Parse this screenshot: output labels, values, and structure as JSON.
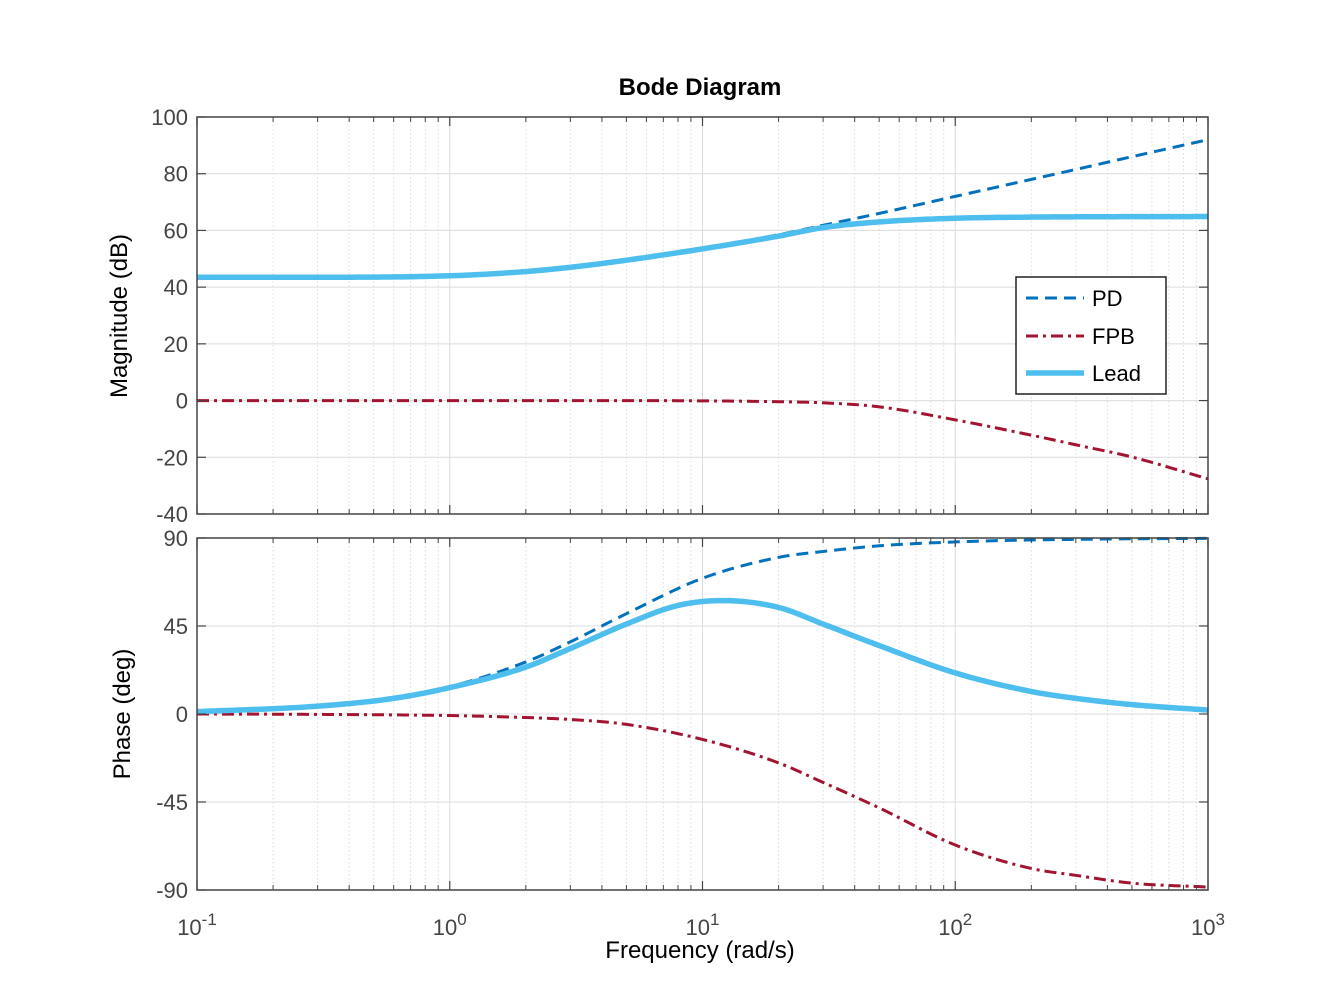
{
  "chart_data": {
    "type": "line",
    "title": "Bode Diagram",
    "xlabel": "Frequency  (rad/s)",
    "xscale": "log",
    "xlim": [
      0.1,
      1000
    ],
    "x_tick_labels": [
      {
        "base": "10",
        "exp": "-1"
      },
      {
        "base": "10",
        "exp": "0"
      },
      {
        "base": "10",
        "exp": "1"
      },
      {
        "base": "10",
        "exp": "2"
      },
      {
        "base": "10",
        "exp": "3"
      }
    ],
    "grid": true,
    "legend": {
      "location": "right",
      "entries": [
        "PD",
        "FPB",
        "Lead"
      ]
    },
    "colors": {
      "PD": "#0072BD",
      "FPB": "#A2142F",
      "Lead": "#4DBEEE",
      "grid": "#dcdcdc",
      "axis": "#444444"
    },
    "line_styles": {
      "PD": "dashed",
      "FPB": "dash-dot",
      "Lead": "solid-thick"
    },
    "subplots": [
      {
        "name": "magnitude",
        "ylabel": "Magnitude (dB)",
        "ylim": [
          -40,
          100
        ],
        "yticks": [
          100,
          80,
          60,
          40,
          20,
          0,
          -20,
          -40
        ],
        "series": [
          {
            "name": "PD",
            "x": [
              0.1,
              0.3,
              1,
              3,
              10,
              20,
              30,
              50,
              100,
              200,
              300,
              500,
              1000
            ],
            "y": [
              43.5,
              43.6,
              44.0,
              47.3,
              53.7,
              58.5,
              61.8,
              66.0,
              72.0,
              78.0,
              81.5,
              86.0,
              92.0
            ]
          },
          {
            "name": "FPB",
            "x": [
              0.1,
              1,
              5,
              10,
              20,
              30,
              50,
              100,
              200,
              300,
              500,
              1000
            ],
            "y": [
              0,
              0,
              0,
              -0.1,
              -0.4,
              -0.8,
              -2.2,
              -6.8,
              -12.2,
              -15.6,
              -19.9,
              -27.6
            ]
          },
          {
            "name": "Lead",
            "x": [
              0.1,
              0.3,
              1,
              2,
              3,
              5,
              10,
              20,
              30,
              50,
              100,
              200,
              300,
              1000
            ],
            "y": [
              43.5,
              43.5,
              44.0,
              45.5,
              47.0,
              49.5,
              53.5,
              58.0,
              61.0,
              63.0,
              64.3,
              64.7,
              64.8,
              64.9
            ]
          }
        ]
      },
      {
        "name": "phase",
        "ylabel": "Phase (deg)",
        "ylim": [
          -90,
          90
        ],
        "yticks": [
          90,
          45,
          0,
          -45,
          -90
        ],
        "series": [
          {
            "name": "PD",
            "x": [
              0.1,
              0.3,
              0.5,
              1,
              2,
              3,
              5,
              10,
              20,
              30,
              50,
              100,
              200,
              300,
              500,
              1000
            ],
            "y": [
              1.5,
              4.3,
              7.1,
              14.0,
              26.6,
              36.9,
              51.3,
              69.4,
              80.1,
              83.1,
              86.0,
              88.0,
              89.0,
              89.3,
              89.6,
              89.8
            ]
          },
          {
            "name": "FPB",
            "x": [
              0.1,
              0.3,
              1,
              2,
              3,
              5,
              10,
              20,
              30,
              50,
              100,
              200,
              300,
              500,
              1000
            ],
            "y": [
              0,
              -0.2,
              -0.8,
              -1.8,
              -2.8,
              -5.3,
              -13.0,
              -25.0,
              -35.0,
              -48.0,
              -67.0,
              -79.0,
              -82.5,
              -86.5,
              -88.5
            ]
          },
          {
            "name": "Lead",
            "x": [
              0.1,
              0.3,
              0.6,
              1,
              2,
              3,
              5,
              8,
              12,
              20,
              30,
              50,
              100,
              200,
              300,
              500,
              1000
            ],
            "y": [
              1.2,
              4.0,
              8.0,
              13.5,
              24.0,
              33.5,
              46.0,
              55.5,
              58.0,
              54.5,
              46.0,
              35.0,
              21.0,
              11.5,
              8.0,
              4.8,
              2.0
            ]
          }
        ]
      }
    ]
  }
}
